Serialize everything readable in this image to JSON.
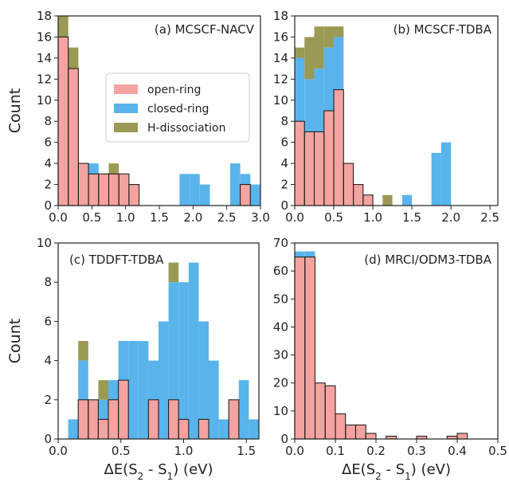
{
  "figure": {
    "colors": {
      "open": "#f4a3a0",
      "closed": "#59b4ec",
      "hdis": "#9a9a55",
      "edge": "#222222"
    }
  },
  "chart_data": [
    {
      "type": "bar",
      "stacked": true,
      "title": "(a) MCSCF-NACV",
      "xlabel": "",
      "ylabel": "Count",
      "xlim": [
        0,
        3.0
      ],
      "ylim": [
        0,
        18
      ],
      "xticks": [
        0.0,
        0.5,
        1.0,
        1.5,
        2.0,
        2.5,
        3.0
      ],
      "yticks": [
        0,
        2,
        4,
        6,
        8,
        10,
        12,
        14,
        16,
        18
      ],
      "bin_width": 0.15,
      "bin_starts": [
        0.0,
        0.15,
        0.3,
        0.45,
        0.6,
        0.75,
        0.9,
        1.05,
        1.8,
        1.95,
        2.1,
        2.55,
        2.7,
        2.85
      ],
      "series": [
        {
          "name": "open-ring",
          "color": "open",
          "values": [
            16,
            13,
            4,
            3,
            3,
            3,
            3,
            2,
            0,
            0,
            0,
            0,
            2,
            0
          ]
        },
        {
          "name": "closed-ring",
          "color": "closed",
          "values": [
            0,
            0,
            0,
            1,
            0,
            0,
            0,
            0,
            3,
            3,
            2,
            4,
            1,
            2
          ]
        },
        {
          "name": "H-dissociation",
          "color": "hdis",
          "values": [
            2,
            2,
            0,
            0,
            0,
            1,
            0,
            0,
            0,
            0,
            0,
            0,
            0,
            0
          ]
        }
      ],
      "legend": {
        "position": "center",
        "entries": [
          "open-ring",
          "closed-ring",
          "H-dissociation"
        ]
      }
    },
    {
      "type": "bar",
      "stacked": true,
      "title": "(b) MCSCF-TDBA",
      "xlabel": "",
      "ylabel": "",
      "xlim": [
        0,
        2.6
      ],
      "ylim": [
        0,
        18
      ],
      "xticks": [
        0.0,
        0.5,
        1.0,
        1.5,
        2.0,
        2.5
      ],
      "yticks": [
        0,
        2,
        4,
        6,
        8,
        10,
        12,
        14,
        16,
        18
      ],
      "bin_width": 0.125,
      "bin_starts": [
        0.0,
        0.125,
        0.25,
        0.375,
        0.5,
        0.625,
        0.75,
        0.875,
        1.125,
        1.375,
        1.625,
        1.75,
        1.875
      ],
      "series": [
        {
          "name": "open-ring",
          "color": "open",
          "values": [
            8,
            7,
            7,
            9,
            11,
            4,
            2,
            1,
            0,
            0,
            0,
            0,
            0
          ]
        },
        {
          "name": "closed-ring",
          "color": "closed",
          "values": [
            6,
            5,
            6,
            6,
            5,
            0,
            0,
            0,
            0,
            1,
            0,
            5,
            6
          ]
        },
        {
          "name": "H-dissociation",
          "color": "hdis",
          "values": [
            1,
            4,
            4,
            2,
            1,
            0,
            0,
            0,
            1,
            0,
            0,
            0,
            0
          ]
        }
      ]
    },
    {
      "type": "bar",
      "stacked": true,
      "title": "(c) TDDFT-TDBA",
      "xlabel": "ΔE(S₂ - S₁) (eV)",
      "ylabel": "Count",
      "xlim": [
        0,
        1.6
      ],
      "ylim": [
        0,
        10
      ],
      "xticks": [
        0.0,
        0.5,
        1.0,
        1.5
      ],
      "yticks": [
        0,
        2,
        4,
        6,
        8,
        10
      ],
      "bin_width": 0.08,
      "bin_starts": [
        0.08,
        0.16,
        0.24,
        0.32,
        0.4,
        0.48,
        0.56,
        0.64,
        0.72,
        0.8,
        0.88,
        0.96,
        1.04,
        1.12,
        1.2,
        1.28,
        1.36,
        1.44,
        1.52
      ],
      "series": [
        {
          "name": "open-ring",
          "color": "open",
          "values": [
            0,
            2,
            2,
            1,
            2,
            3,
            0,
            0,
            2,
            0,
            2,
            1,
            0,
            1,
            0,
            0,
            2,
            0,
            0
          ]
        },
        {
          "name": "closed-ring",
          "color": "closed",
          "values": [
            1,
            2,
            0,
            1,
            1,
            2,
            5,
            5,
            2,
            6,
            6,
            7,
            9,
            5,
            4,
            1,
            0,
            3,
            1
          ]
        },
        {
          "name": "H-dissociation",
          "color": "hdis",
          "values": [
            0,
            1,
            0,
            1,
            0,
            0,
            0,
            0,
            0,
            0,
            1,
            0,
            0,
            0,
            0,
            0,
            0,
            0,
            0
          ]
        }
      ]
    },
    {
      "type": "bar",
      "stacked": true,
      "title": "(d) MRCI/ODM3-TDBA",
      "xlabel": "ΔE(S₂ - S₁) (eV)",
      "ylabel": "",
      "xlim": [
        0,
        0.5
      ],
      "ylim": [
        0,
        70
      ],
      "xticks": [
        0.0,
        0.1,
        0.2,
        0.3,
        0.4,
        0.5
      ],
      "yticks": [
        0,
        10,
        20,
        30,
        40,
        50,
        60,
        70
      ],
      "bin_width": 0.025,
      "bin_starts": [
        0.0,
        0.025,
        0.05,
        0.075,
        0.1,
        0.125,
        0.15,
        0.175,
        0.2,
        0.225,
        0.25,
        0.275,
        0.3,
        0.325,
        0.35,
        0.375,
        0.4,
        0.425
      ],
      "series": [
        {
          "name": "open-ring",
          "color": "open",
          "values": [
            65,
            65,
            20,
            19,
            9,
            5,
            5,
            2,
            0,
            1,
            0,
            0,
            1,
            0,
            0,
            1,
            2,
            0
          ]
        },
        {
          "name": "closed-ring",
          "color": "closed",
          "values": [
            2,
            2,
            0,
            0,
            0,
            0,
            0,
            0,
            0,
            0,
            0,
            0,
            0,
            0,
            0,
            0,
            0,
            0
          ]
        },
        {
          "name": "H-dissociation",
          "color": "hdis",
          "values": [
            0,
            0,
            0,
            0,
            0,
            0,
            0,
            0,
            0,
            0,
            0,
            0,
            0,
            0,
            0,
            0,
            0,
            0
          ]
        }
      ]
    }
  ]
}
